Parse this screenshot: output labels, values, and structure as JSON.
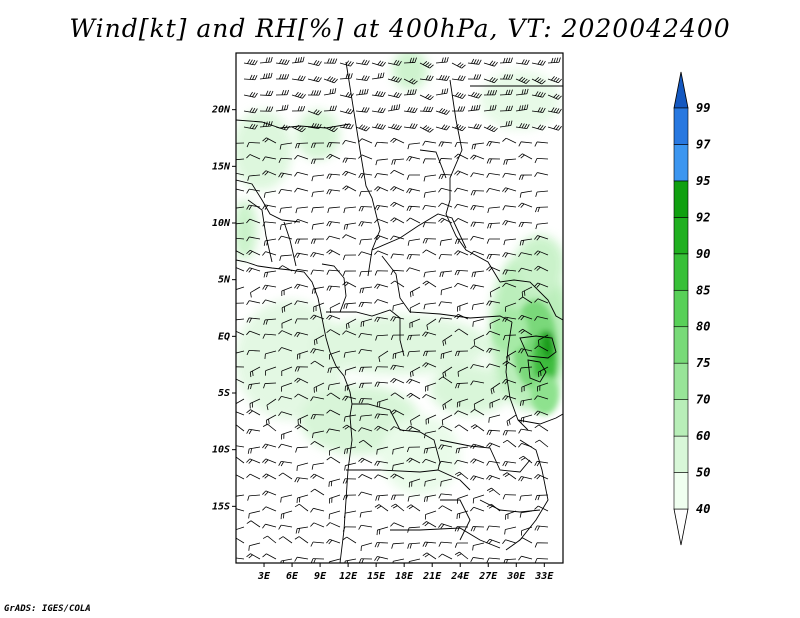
{
  "title": "Wind[kt] and RH[%] at 400hPa, VT: 2020042400",
  "credit": "GrADS: IGES/COLA",
  "map": {
    "lon_range": [
      0,
      35
    ],
    "lat_range": [
      -20,
      25
    ],
    "x_ticks": [
      "3E",
      "6E",
      "9E",
      "12E",
      "15E",
      "18E",
      "21E",
      "24E",
      "27E",
      "30E",
      "33E"
    ],
    "x_tick_values": [
      3,
      6,
      9,
      12,
      15,
      18,
      21,
      24,
      27,
      30,
      33
    ],
    "y_ticks": [
      "20N",
      "15N",
      "10N",
      "5N",
      "EQ",
      "5S",
      "10S",
      "15S"
    ],
    "y_tick_values": [
      20,
      15,
      10,
      5,
      0,
      -5,
      -10,
      -15
    ]
  },
  "colorbar": {
    "levels": [
      "40",
      "50",
      "60",
      "70",
      "75",
      "80",
      "85",
      "90",
      "92",
      "95",
      "97",
      "99"
    ],
    "colors": [
      "#f0fff0",
      "#d8f7d8",
      "#b8eeb8",
      "#98e498",
      "#78da78",
      "#58d058",
      "#38c038",
      "#20b020",
      "#10a010",
      "#3c96f0",
      "#2878e0",
      "#1458c0"
    ],
    "under_color": "#ffffff",
    "over_color": "#1458c0"
  },
  "rh_field_colors": {
    "low": "#e6fae6",
    "mid": "#c6f2c6",
    "high": "#9ae69a",
    "very_high": "#50c850",
    "max": "#1c9c1c"
  }
}
